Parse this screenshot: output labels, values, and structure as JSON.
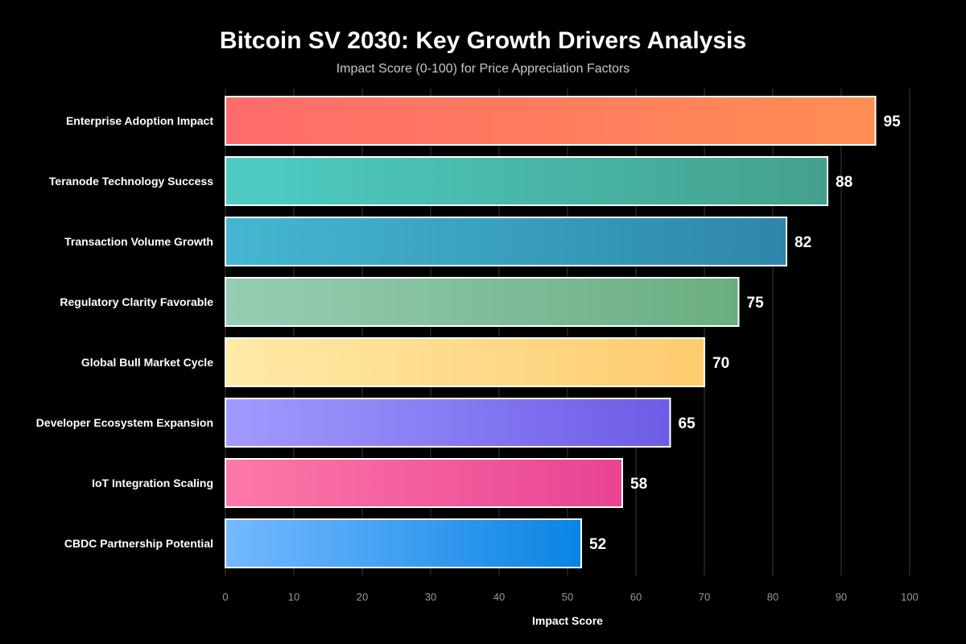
{
  "chart_data": {
    "type": "bar",
    "orientation": "horizontal",
    "title": "Bitcoin SV 2030: Key Growth Drivers Analysis",
    "subtitle": "Impact Score (0-100) for Price Appreciation Factors",
    "xlabel": "Impact Score",
    "ylabel": "",
    "xlim": [
      0,
      100
    ],
    "xticks": [
      "0",
      "10",
      "20",
      "30",
      "40",
      "50",
      "60",
      "70",
      "80",
      "90",
      "100"
    ],
    "grid": true,
    "categories": [
      "Enterprise Adoption Impact",
      "Teranode Technology Success",
      "Transaction Volume Growth",
      "Regulatory Clarity Favorable",
      "Global Bull Market Cycle",
      "Developer Ecosystem Expansion",
      "IoT Integration Scaling",
      "CBDC Partnership Potential"
    ],
    "values": [
      95,
      88,
      82,
      75,
      70,
      65,
      58,
      52
    ],
    "colors": [
      [
        "#ff6b6b",
        "#ff8e53"
      ],
      [
        "#4ecdc4",
        "#44a08d"
      ],
      [
        "#45b7d1",
        "#2e86ab"
      ],
      [
        "#96ceb4",
        "#6aae80"
      ],
      [
        "#ffeaa7",
        "#fdcb6e"
      ],
      [
        "#a29bfe",
        "#6c5ce7"
      ],
      [
        "#fd79a8",
        "#e84393"
      ],
      [
        "#74b9ff",
        "#0984e3"
      ]
    ]
  }
}
